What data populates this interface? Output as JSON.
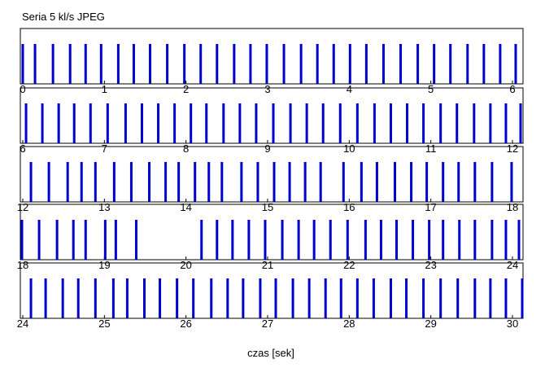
{
  "chart_data": [
    {
      "type": "event",
      "title": "Seria 5 kl/s JPEG",
      "color": "#0000cc",
      "xlim": [
        -0.03,
        6.13
      ],
      "xticks": [
        0,
        1,
        2,
        3,
        4,
        5,
        6
      ],
      "x": [
        0,
        0.15,
        0.37,
        0.58,
        0.77,
        0.96,
        1.17,
        1.36,
        1.56,
        1.77,
        1.98,
        2.18,
        2.38,
        2.59,
        2.79,
        2.99,
        3.2,
        3.41,
        3.61,
        3.81,
        4.01,
        4.21,
        4.42,
        4.63,
        4.84,
        5.04,
        5.24,
        5.45,
        5.65,
        5.85,
        6.04
      ]
    },
    {
      "type": "event",
      "color": "#0000cc",
      "xlim": [
        5.97,
        12.13
      ],
      "xticks": [
        6,
        7,
        8,
        9,
        10,
        11,
        12
      ],
      "x": [
        6.04,
        6.24,
        6.44,
        6.63,
        6.83,
        7.04,
        7.26,
        7.46,
        7.66,
        7.86,
        8.06,
        8.25,
        8.46,
        8.66,
        8.86,
        9.07,
        9.28,
        9.48,
        9.68,
        9.89,
        10.1,
        10.31,
        10.51,
        10.71,
        10.91,
        11.12,
        11.32,
        11.53,
        11.73,
        11.92,
        12.1
      ]
    },
    {
      "type": "event",
      "color": "#0000cc",
      "xlim": [
        11.97,
        18.13
      ],
      "xticks": [
        12,
        13,
        14,
        15,
        16,
        17,
        18
      ],
      "x": [
        12.1,
        12.32,
        12.55,
        12.72,
        12.89,
        13.12,
        13.33,
        13.55,
        13.75,
        13.91,
        14.11,
        14.28,
        14.44,
        14.68,
        14.88,
        15.08,
        15.27,
        15.46,
        15.65,
        15.93,
        16.15,
        16.34,
        16.56,
        16.76,
        16.95,
        17.15,
        17.34,
        17.54,
        17.75,
        17.99
      ]
    },
    {
      "type": "event",
      "color": "#0000cc",
      "xlim": [
        17.97,
        24.13
      ],
      "xticks": [
        18,
        19,
        20,
        21,
        22,
        23,
        24
      ],
      "x": [
        17.99,
        18.2,
        18.42,
        18.62,
        18.77,
        19.01,
        19.14,
        19.39,
        20.19,
        20.38,
        20.57,
        20.77,
        20.97,
        21.18,
        21.38,
        21.57,
        21.77,
        21.98,
        22.2,
        22.39,
        22.58,
        22.78,
        22.98,
        23.15,
        23.35,
        23.54,
        23.75,
        23.92,
        24.08
      ]
    },
    {
      "type": "event",
      "color": "#0000cc",
      "x_label": "czas [sek]",
      "xlim": [
        23.97,
        30.13
      ],
      "xticks": [
        24,
        25,
        26,
        27,
        28,
        29,
        30
      ],
      "x": [
        24.1,
        24.28,
        24.49,
        24.68,
        24.89,
        25.11,
        25.28,
        25.49,
        25.68,
        25.89,
        26.09,
        26.31,
        26.51,
        26.7,
        26.91,
        27.1,
        27.31,
        27.51,
        27.71,
        27.9,
        28.1,
        28.3,
        28.51,
        28.7,
        28.91,
        29.12,
        29.33,
        29.54,
        29.73,
        29.92,
        30.12
      ]
    }
  ]
}
